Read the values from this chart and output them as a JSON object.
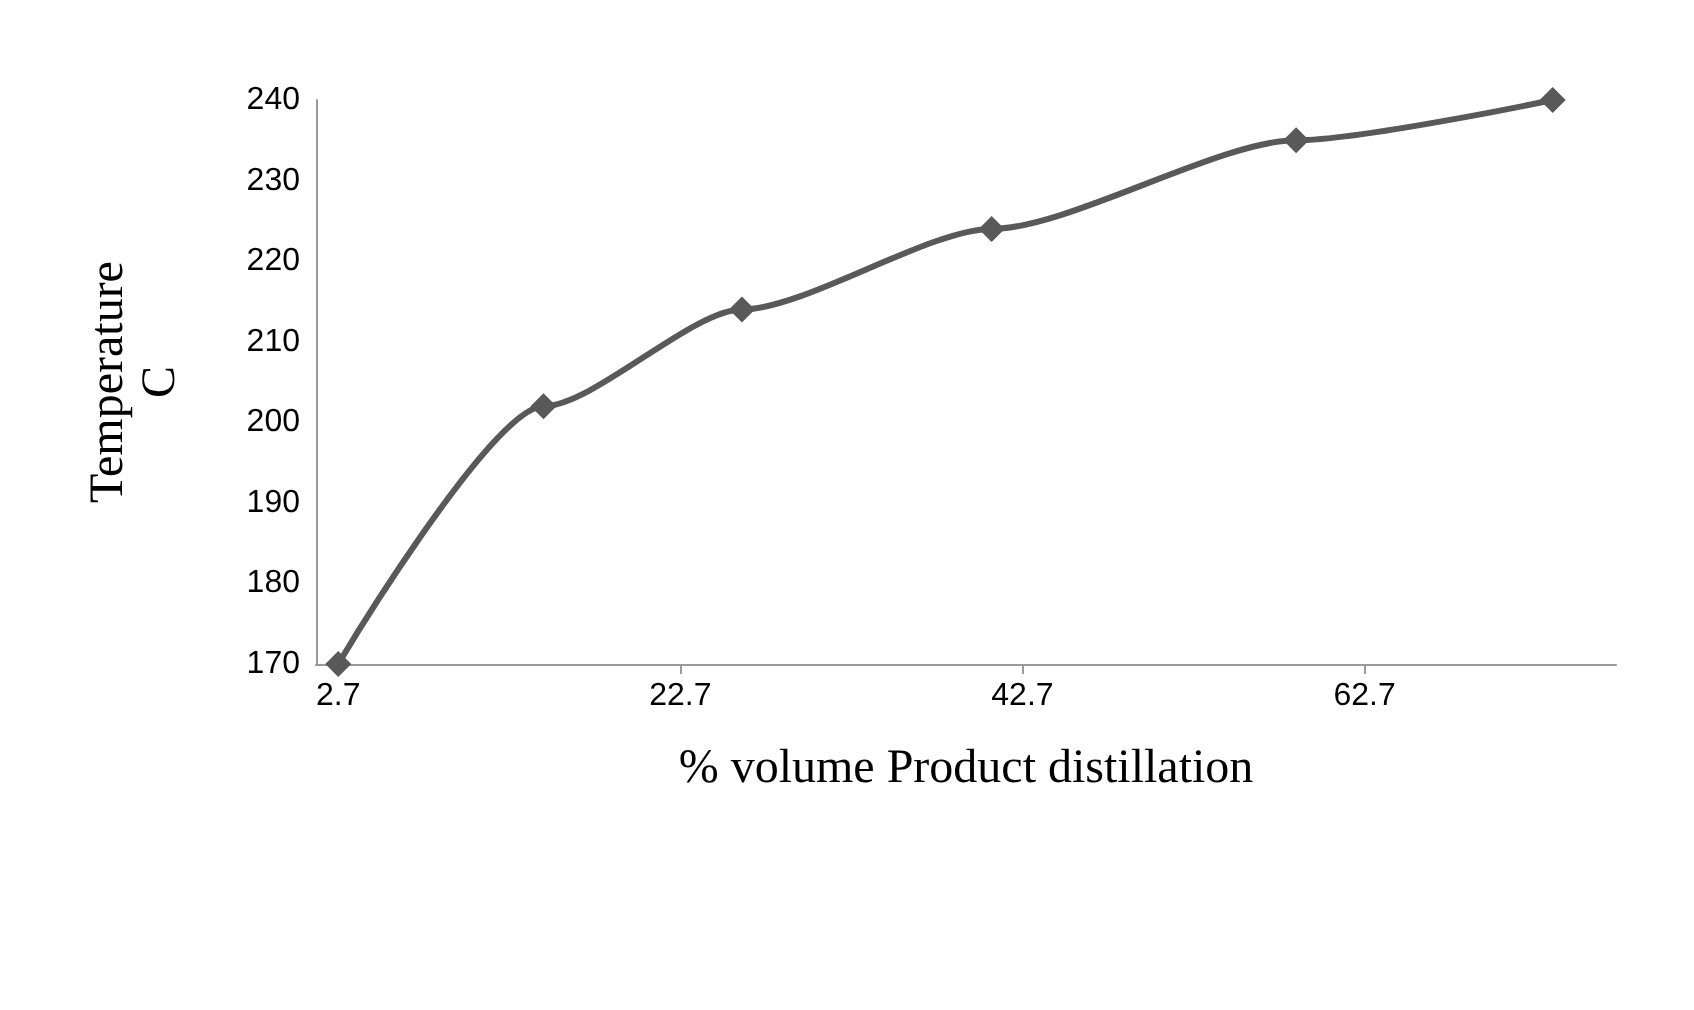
{
  "chart_data": {
    "type": "line",
    "xlabel": "% volume Product distillation",
    "ylabel": "Temperature\nC",
    "x": [
      2.7,
      14.7,
      26.3,
      40.9,
      58.7,
      73.7
    ],
    "series": [
      {
        "color": "#595959",
        "values": [
          170,
          202,
          214,
          224,
          235,
          240
        ]
      }
    ],
    "xlim": [
      1.4,
      77.4
    ],
    "xticks": [
      2.7,
      22.7,
      42.7,
      62.7
    ],
    "ylim": [
      170,
      240
    ],
    "yticks": [
      170,
      180,
      190,
      200,
      210,
      220,
      230,
      240
    ],
    "grid": false,
    "marker": "diamond",
    "line_style": "solid"
  }
}
